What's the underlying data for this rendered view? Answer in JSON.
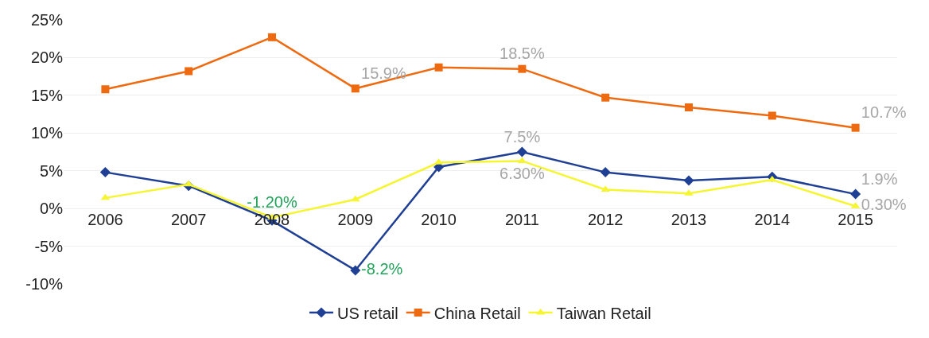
{
  "chart_data": {
    "type": "line",
    "categories": [
      "2006",
      "2007",
      "2008",
      "2009",
      "2010",
      "2011",
      "2012",
      "2013",
      "2014",
      "2015"
    ],
    "series": [
      {
        "name": "US retail",
        "color": "#1f3f94",
        "marker": "diamond",
        "values": [
          4.8,
          3.0,
          -1.6,
          -8.2,
          5.5,
          7.5,
          4.8,
          3.7,
          4.2,
          1.9
        ],
        "value_labels": [
          null,
          null,
          null,
          "-8.2%",
          null,
          "7.5%",
          null,
          null,
          null,
          "1.9%"
        ]
      },
      {
        "name": "China Retail",
        "color": "#ee6a10",
        "marker": "square",
        "values": [
          15.8,
          18.2,
          22.7,
          15.9,
          18.7,
          18.5,
          14.7,
          13.4,
          12.3,
          10.7
        ],
        "value_labels": [
          null,
          null,
          null,
          "15.9%",
          null,
          "18.5%",
          null,
          null,
          null,
          "10.7%"
        ]
      },
      {
        "name": "Taiwan Retail",
        "color": "#f5f531",
        "marker": "triangle",
        "values": [
          1.4,
          3.2,
          -1.2,
          1.2,
          6.1,
          6.3,
          2.5,
          2.0,
          3.8,
          0.3
        ],
        "value_labels": [
          null,
          null,
          "-1.20%",
          null,
          null,
          "6.30%",
          null,
          null,
          null,
          "0.30%"
        ]
      }
    ],
    "ylim": [
      -10,
      25
    ],
    "yticks": [
      {
        "value": -10,
        "label": "-10%"
      },
      {
        "value": -5,
        "label": "-5%"
      },
      {
        "value": 0,
        "label": "0%"
      },
      {
        "value": 5,
        "label": "5%"
      },
      {
        "value": 10,
        "label": "10%"
      },
      {
        "value": 15,
        "label": "15%"
      },
      {
        "value": 20,
        "label": "20%"
      },
      {
        "value": 25,
        "label": "25%"
      }
    ],
    "grid": "y",
    "legend": "bottom",
    "line_style": "solid"
  }
}
